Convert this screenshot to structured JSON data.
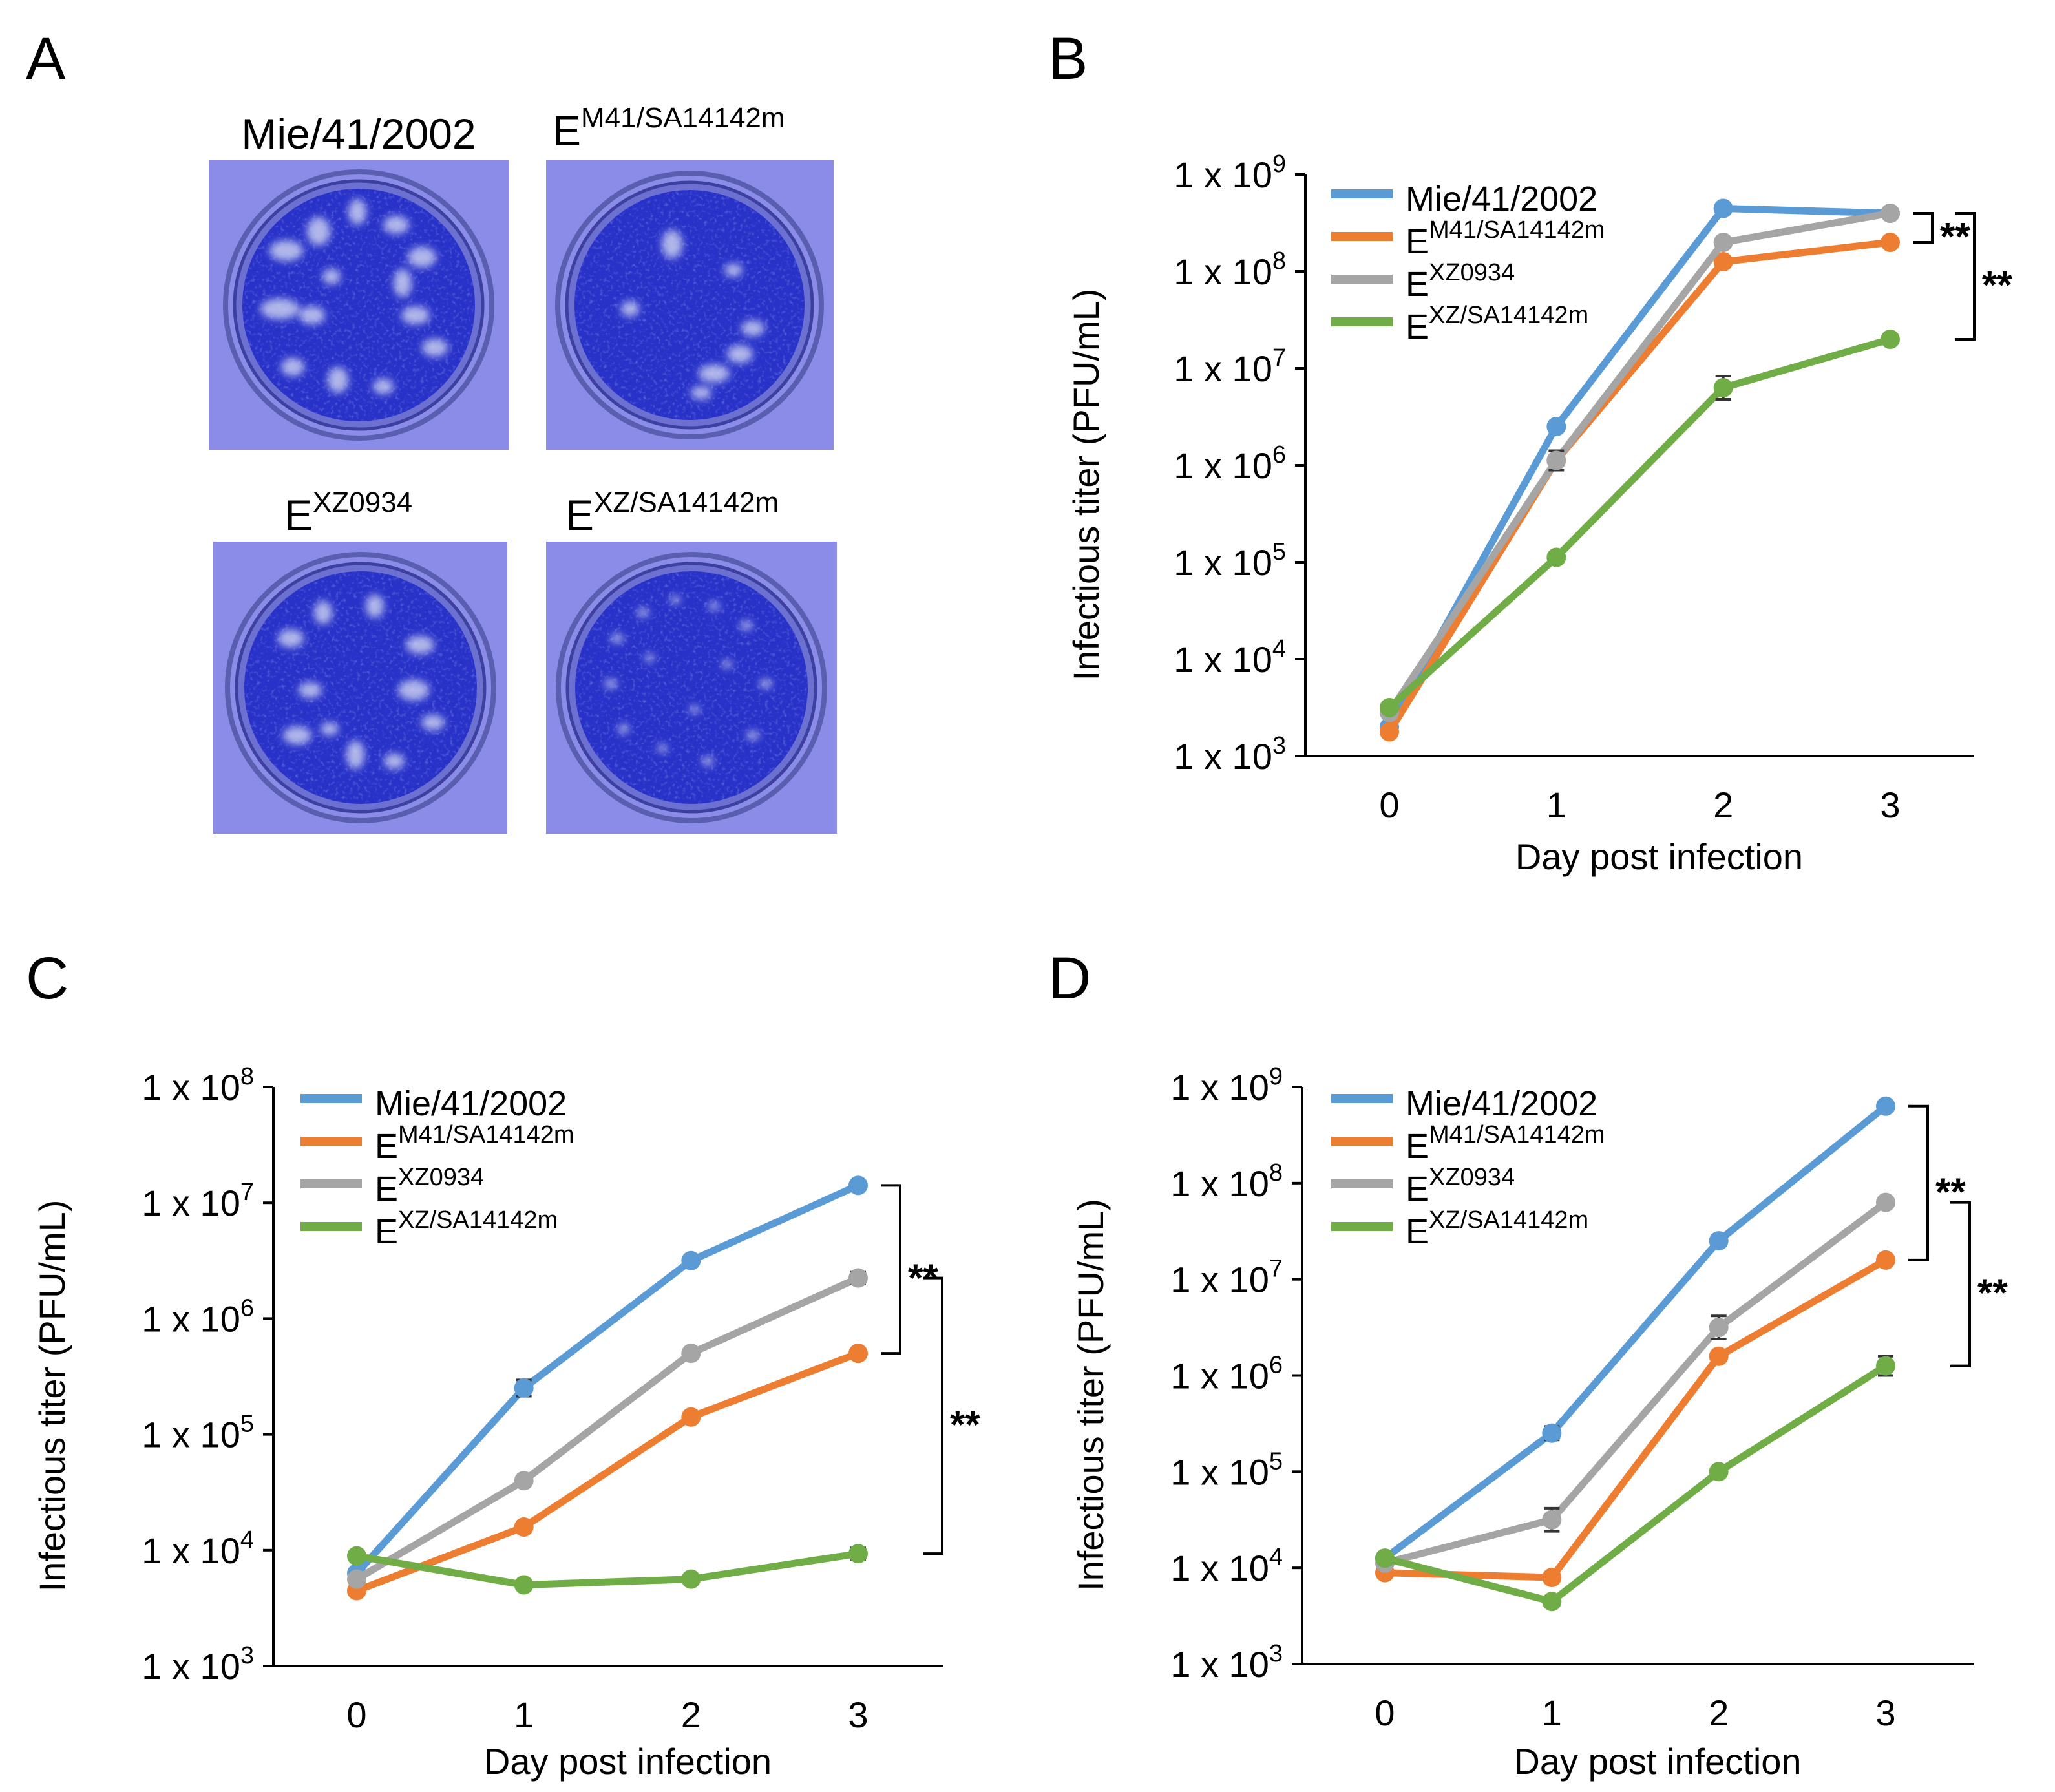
{
  "figure": {
    "panel_A": {
      "label": "A",
      "plaques": [
        {
          "base": "Mie/41/2002",
          "sup": ""
        },
        {
          "base": "E",
          "sup": "M41/SA14142m"
        },
        {
          "base": "E",
          "sup": "XZ0934"
        },
        {
          "base": "E",
          "sup": "XZ/SA14142m"
        }
      ]
    },
    "colors": {
      "Mie/41/2002": "#5b9bd5",
      "EM41/SA14142m": "#ed7d31",
      "EXZ0934": "#a5a5a5",
      "EXZ/SA14142m": "#70ad47",
      "plate_bg": "#8a8ce8",
      "well": "#2832c8"
    }
  },
  "chart_data": [
    {
      "panel": "B",
      "type": "line",
      "title": "",
      "xlabel": "Day post infection",
      "ylabel": "Infectious titer (PFU/mL)",
      "x": [
        0,
        1,
        2,
        3
      ],
      "ylim_log10": [
        3,
        9
      ],
      "yscale": "log",
      "ytick_exponents": [
        3,
        4,
        5,
        6,
        7,
        8,
        9
      ],
      "ytick_prefix": "1 x 10",
      "legend": {
        "placement": "top-left"
      },
      "series": [
        {
          "name": "Mie/41/2002",
          "base": "Mie/41/2002",
          "sup": "",
          "log10_values": [
            3.3,
            6.4,
            8.65,
            8.6
          ],
          "errors": [
            0,
            0,
            0,
            0
          ]
        },
        {
          "name": "EM41/SA14142m",
          "base": "E",
          "sup": "M41/SA14142m",
          "log10_values": [
            3.25,
            6.05,
            8.1,
            8.3
          ],
          "errors": [
            0,
            0.05,
            0,
            0
          ]
        },
        {
          "name": "EXZ0934",
          "base": "E",
          "sup": "XZ0934",
          "log10_values": [
            3.45,
            6.05,
            8.3,
            8.6
          ],
          "errors": [
            0,
            0.1,
            0,
            0
          ]
        },
        {
          "name": "EXZ/SA14142m",
          "base": "E",
          "sup": "XZ/SA14142m",
          "log10_values": [
            3.5,
            5.05,
            6.8,
            7.3
          ],
          "errors": [
            0,
            0,
            0.12,
            0
          ]
        }
      ],
      "annotations": [
        {
          "text": "**",
          "from_series": "Mie/41/2002",
          "to_series": "EM41/SA14142m",
          "at_x": 3
        },
        {
          "text": "**",
          "from_series": "Mie/41/2002",
          "to_series": "EXZ/SA14142m",
          "at_x": 3
        }
      ]
    },
    {
      "panel": "C",
      "type": "line",
      "title": "",
      "xlabel": "Day post infection",
      "ylabel": "Infectious titer (PFU/mL)",
      "x": [
        0,
        1,
        2,
        3
      ],
      "ylim_log10": [
        3,
        8
      ],
      "yscale": "log",
      "ytick_exponents": [
        3,
        4,
        5,
        6,
        7,
        8
      ],
      "ytick_prefix": "1 x 10",
      "legend": {
        "placement": "top-left"
      },
      "series": [
        {
          "name": "Mie/41/2002",
          "base": "Mie/41/2002",
          "sup": "",
          "log10_values": [
            3.8,
            5.4,
            6.5,
            7.15
          ],
          "errors": [
            0,
            0.07,
            0,
            0
          ]
        },
        {
          "name": "EM41/SA14142m",
          "base": "E",
          "sup": "M41/SA14142m",
          "log10_values": [
            3.65,
            4.2,
            5.15,
            5.7
          ],
          "errors": [
            0,
            0,
            0,
            0
          ]
        },
        {
          "name": "EXZ0934",
          "base": "E",
          "sup": "XZ0934",
          "log10_values": [
            3.75,
            4.6,
            5.7,
            6.35
          ],
          "errors": [
            0,
            0,
            0,
            0.05
          ]
        },
        {
          "name": "EXZ/SA14142m",
          "base": "E",
          "sup": "XZ/SA14142m",
          "log10_values": [
            3.95,
            3.7,
            3.75,
            3.97
          ],
          "errors": [
            0,
            0,
            0,
            0.05
          ]
        }
      ],
      "annotations": [
        {
          "text": "**",
          "from_series": "Mie/41/2002",
          "to_series": "EM41/SA14142m",
          "at_x": 3
        },
        {
          "text": "**",
          "from_series": "EXZ0934",
          "to_series": "EXZ/SA14142m",
          "at_x": 3
        }
      ]
    },
    {
      "panel": "D",
      "type": "line",
      "title": "",
      "xlabel": "Day post infection",
      "ylabel": "Infectious titer (PFU/mL)",
      "x": [
        0,
        1,
        2,
        3
      ],
      "ylim_log10": [
        3,
        9
      ],
      "yscale": "log",
      "ytick_exponents": [
        3,
        4,
        5,
        6,
        7,
        8,
        9
      ],
      "ytick_prefix": "1 x 10",
      "legend": {
        "placement": "top-left"
      },
      "series": [
        {
          "name": "Mie/41/2002",
          "base": "Mie/41/2002",
          "sup": "",
          "log10_values": [
            4.1,
            5.4,
            7.4,
            8.8
          ],
          "errors": [
            0,
            0.07,
            0,
            0
          ]
        },
        {
          "name": "EM41/SA14142m",
          "base": "E",
          "sup": "M41/SA14142m",
          "log10_values": [
            3.95,
            3.9,
            6.2,
            7.2
          ],
          "errors": [
            0,
            0.05,
            0,
            0
          ]
        },
        {
          "name": "EXZ0934",
          "base": "E",
          "sup": "XZ0934",
          "log10_values": [
            4.05,
            4.5,
            6.5,
            7.8
          ],
          "errors": [
            0,
            0.12,
            0.12,
            0
          ]
        },
        {
          "name": "EXZ/SA14142m",
          "base": "E",
          "sup": "XZ/SA14142m",
          "log10_values": [
            4.1,
            3.65,
            5.0,
            6.1
          ],
          "errors": [
            0,
            0,
            0,
            0.1
          ]
        }
      ],
      "annotations": [
        {
          "text": "**",
          "from_series": "Mie/41/2002",
          "to_series": "EM41/SA14142m",
          "at_x": 3
        },
        {
          "text": "**",
          "from_series": "EXZ0934",
          "to_series": "EXZ/SA14142m",
          "at_x": 3
        }
      ]
    }
  ]
}
